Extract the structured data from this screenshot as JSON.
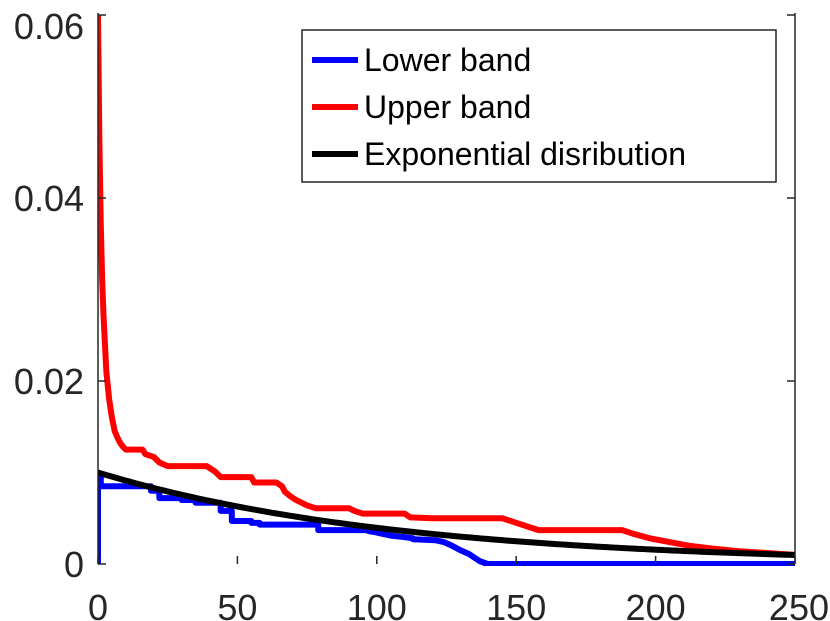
{
  "chart_data": {
    "type": "line",
    "title": "",
    "xlabel": "",
    "ylabel": "",
    "xlim": [
      0,
      250
    ],
    "ylim": [
      0,
      0.06
    ],
    "xticks": [
      0,
      50,
      100,
      150,
      200,
      250
    ],
    "yticks": [
      0,
      0.02,
      0.04,
      0.06
    ],
    "xtick_labels": [
      "0",
      "50",
      "100",
      "150",
      "200",
      "250"
    ],
    "ytick_labels": [
      "0",
      "0.02",
      "0.04",
      "0.06"
    ],
    "grid": false,
    "legend_position": "top-right",
    "series": [
      {
        "name": "Lower band",
        "color": "#0000ff",
        "x": [
          0,
          0,
          1,
          1,
          19,
          19,
          22,
          22,
          30,
          30,
          35,
          35,
          44,
          44,
          48,
          48,
          55,
          55,
          58,
          58,
          79,
          79,
          97,
          97,
          99,
          102,
          105,
          108,
          111,
          113,
          113,
          121,
          124,
          127,
          130,
          133,
          135,
          137,
          139,
          139,
          250
        ],
        "y": [
          0,
          0.0095,
          0.0095,
          0.0085,
          0.0085,
          0.008,
          0.008,
          0.0072,
          0.0072,
          0.007,
          0.007,
          0.0067,
          0.0067,
          0.0058,
          0.0058,
          0.0047,
          0.0047,
          0.0045,
          0.0045,
          0.0043,
          0.0043,
          0.0037,
          0.0037,
          0.0036,
          0.0035,
          0.0033,
          0.0031,
          0.003,
          0.0029,
          0.0028,
          0.0027,
          0.0026,
          0.0024,
          0.002,
          0.0015,
          0.0011,
          0.0007,
          0.0003,
          0.0001,
          0,
          0
        ]
      },
      {
        "name": "Upper band",
        "color": "#ff0000",
        "x": [
          0,
          0.5,
          1,
          1.5,
          2,
          3,
          4,
          5,
          6,
          7,
          8,
          9,
          10,
          11,
          13,
          16,
          17,
          20,
          22,
          25,
          29,
          39,
          40,
          42,
          44,
          55,
          56,
          64,
          66,
          67,
          69,
          71,
          73,
          75,
          78,
          90,
          92,
          95,
          110,
          112,
          120,
          145,
          150,
          155,
          158,
          188,
          192,
          198,
          205,
          212,
          220,
          230,
          240,
          250
        ],
        "y": [
          0.06,
          0.046,
          0.037,
          0.031,
          0.027,
          0.021,
          0.018,
          0.016,
          0.0145,
          0.0138,
          0.0132,
          0.0128,
          0.0125,
          0.0125,
          0.0125,
          0.0125,
          0.012,
          0.0117,
          0.0111,
          0.0107,
          0.0107,
          0.0107,
          0.0105,
          0.0101,
          0.0095,
          0.0095,
          0.0089,
          0.0089,
          0.0085,
          0.0079,
          0.0074,
          0.007,
          0.0067,
          0.0064,
          0.0061,
          0.0061,
          0.0058,
          0.0055,
          0.0055,
          0.0051,
          0.005,
          0.005,
          0.0045,
          0.004,
          0.0037,
          0.0037,
          0.0033,
          0.0028,
          0.0024,
          0.002,
          0.0017,
          0.0014,
          0.0012,
          0.001
        ]
      },
      {
        "name": "Exponential disribution",
        "color": "#000000",
        "function": "exp",
        "scale": 0.01,
        "rate": 0.00928,
        "x_range": [
          0,
          250
        ]
      }
    ]
  }
}
